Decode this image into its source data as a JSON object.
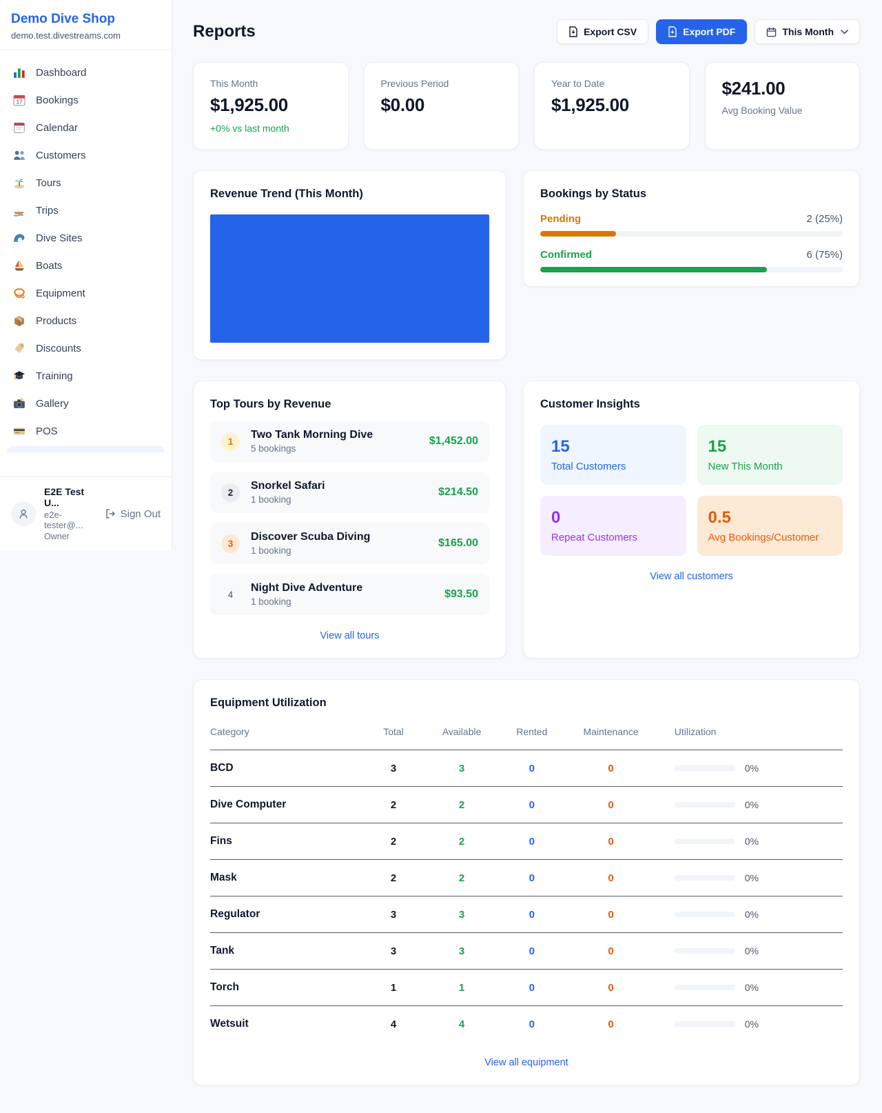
{
  "brand": {
    "name": "Demo Dive Shop",
    "domain": "demo.test.divestreams.com"
  },
  "sidebar": {
    "items": [
      {
        "icon": "bar-chart",
        "label": "Dashboard"
      },
      {
        "icon": "bookings-calendar",
        "label": "Bookings"
      },
      {
        "icon": "tear-off-calendar",
        "label": "Calendar"
      },
      {
        "icon": "people",
        "label": "Customers"
      },
      {
        "icon": "desert-island",
        "label": "Tours"
      },
      {
        "icon": "speedboat",
        "label": "Trips"
      },
      {
        "icon": "water-wave",
        "label": "Dive Sites"
      },
      {
        "icon": "sailboat",
        "label": "Boats"
      },
      {
        "icon": "dive-mask",
        "label": "Equipment"
      },
      {
        "icon": "package-box",
        "label": "Products"
      },
      {
        "icon": "price-tag",
        "label": "Discounts"
      },
      {
        "icon": "graduation-cap",
        "label": "Training"
      },
      {
        "icon": "camera-flash",
        "label": "Gallery"
      },
      {
        "icon": "credit-card",
        "label": "POS"
      }
    ]
  },
  "user": {
    "name": "E2E Test U...",
    "email": "e2e-tester@...",
    "role": "Owner",
    "sign_out": "Sign Out"
  },
  "header": {
    "title": "Reports",
    "export_csv": "Export CSV",
    "export_pdf": "Export PDF",
    "period": "This Month"
  },
  "stats": [
    {
      "label": "This Month",
      "value": "$1,925.00",
      "delta": "+0% vs last month"
    },
    {
      "label": "Previous Period",
      "value": "$0.00"
    },
    {
      "label": "Year to Date",
      "value": "$1,925.00"
    },
    {
      "label": "Avg Booking Value",
      "value": "$241.00"
    }
  ],
  "revenue_trend": {
    "title": "Revenue Trend (This Month)",
    "bar_color": "#2563eb"
  },
  "chart_data": {
    "type": "bar",
    "title": "Revenue Trend (This Month)",
    "categories": [
      "This Month"
    ],
    "values": [
      1925
    ],
    "ylim": [
      0,
      1925
    ],
    "note": "single solid blue bar fills the entire plot area; no axes or labels visible"
  },
  "bookings_by_status": {
    "title": "Bookings by Status",
    "rows": [
      {
        "label": "Pending",
        "value": "2 (25%)",
        "pct": "25%",
        "color": "#d97706"
      },
      {
        "label": "Confirmed",
        "value": "6 (75%)",
        "pct": "75%",
        "color": "#16a34a"
      }
    ]
  },
  "top_tours": {
    "title": "Top Tours by Revenue",
    "link": "View all tours",
    "rows": [
      {
        "rank": "1",
        "name": "Two Tank Morning Dive",
        "bookings": "5 bookings",
        "amount": "$1,452.00"
      },
      {
        "rank": "2",
        "name": "Snorkel Safari",
        "bookings": "1 booking",
        "amount": "$214.50"
      },
      {
        "rank": "3",
        "name": "Discover Scuba Diving",
        "bookings": "1 booking",
        "amount": "$165.00"
      },
      {
        "rank": "4",
        "name": "Night Dive Adventure",
        "bookings": "1 booking",
        "amount": "$93.50"
      }
    ]
  },
  "customer_insights": {
    "title": "Customer Insights",
    "link": "View all customers",
    "tiles": [
      {
        "value": "15",
        "label": "Total Customers",
        "color": "blue"
      },
      {
        "value": "15",
        "label": "New This Month",
        "color": "green"
      },
      {
        "value": "0",
        "label": "Repeat Customers",
        "color": "purple"
      },
      {
        "value": "0.5",
        "label": "Avg Bookings/Customer",
        "color": "orange"
      }
    ]
  },
  "equipment": {
    "title": "Equipment Utilization",
    "link": "View all equipment",
    "columns": [
      "Category",
      "Total",
      "Available",
      "Rented",
      "Maintenance",
      "Utilization"
    ],
    "rows": [
      {
        "category": "BCD",
        "total": "3",
        "available": "3",
        "rented": "0",
        "maintenance": "0",
        "utilization": "0%"
      },
      {
        "category": "Dive Computer",
        "total": "2",
        "available": "2",
        "rented": "0",
        "maintenance": "0",
        "utilization": "0%"
      },
      {
        "category": "Fins",
        "total": "2",
        "available": "2",
        "rented": "0",
        "maintenance": "0",
        "utilization": "0%"
      },
      {
        "category": "Mask",
        "total": "2",
        "available": "2",
        "rented": "0",
        "maintenance": "0",
        "utilization": "0%"
      },
      {
        "category": "Regulator",
        "total": "3",
        "available": "3",
        "rented": "0",
        "maintenance": "0",
        "utilization": "0%"
      },
      {
        "category": "Tank",
        "total": "3",
        "available": "3",
        "rented": "0",
        "maintenance": "0",
        "utilization": "0%"
      },
      {
        "category": "Torch",
        "total": "1",
        "available": "1",
        "rented": "0",
        "maintenance": "0",
        "utilization": "0%"
      },
      {
        "category": "Wetsuit",
        "total": "4",
        "available": "4",
        "rented": "0",
        "maintenance": "0",
        "utilization": "0%"
      }
    ]
  }
}
